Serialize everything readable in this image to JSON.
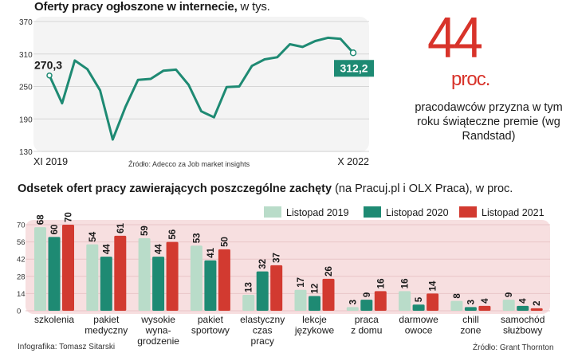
{
  "headline": {
    "title_bold": "Oferty pracy ogłoszone w internecie,",
    "title_unit": " w tys."
  },
  "callout": {
    "big_number": "44",
    "unit": "proc.",
    "caption": "pracodawców przyzna w tym roku świąteczne premie (wg Randstad)"
  },
  "chart_data": [
    {
      "type": "line",
      "title": "Oferty pracy ogłoszone w internecie, w tys.",
      "x_start_label": "XI 2019",
      "x_end_label": "X 2022",
      "yticks": [
        "370",
        "310",
        "250",
        "190",
        "130"
      ],
      "ylim": [
        130,
        370
      ],
      "values": [
        270.3,
        219,
        298,
        282,
        243,
        152,
        212,
        262,
        264,
        279,
        281,
        253,
        204,
        193,
        249,
        250,
        288,
        300,
        304,
        328,
        323,
        334,
        340,
        338,
        312.2
      ],
      "start_label": "270,3",
      "end_label": "312,2",
      "source": "Źródło: Adecco za Job market insights"
    },
    {
      "type": "bar",
      "title_bold": "Odsetek ofert pracy zawierających poszczególne zachęty",
      "title_rest": " (na Pracuj.pl i OLX Praca), w proc.",
      "categories": [
        "szkolenia",
        "pakiet medyczny",
        "wysokie wyna-grodzenie",
        "pakiet sportowy",
        "elastyczny czas pracy",
        "lekcje językowe",
        "praca z domu",
        "darmowe owoce",
        "chill zone",
        "samochód służbowy"
      ],
      "category_lines": [
        [
          "szkolenia"
        ],
        [
          "pakiet",
          "medyczny"
        ],
        [
          "wysokie",
          "wyna-",
          "grodzenie"
        ],
        [
          "pakiet",
          "sportowy"
        ],
        [
          "elastyczny",
          "czas",
          "pracy"
        ],
        [
          "lekcje",
          "językowe"
        ],
        [
          "praca",
          "z domu"
        ],
        [
          "darmowe",
          "owoce"
        ],
        [
          "chill",
          "zone"
        ],
        [
          "samochód",
          "służbowy"
        ]
      ],
      "series": [
        {
          "name": "Listopad 2019",
          "color": "#b9dcc9",
          "values": [
            68,
            54,
            59,
            53,
            13,
            17,
            3,
            16,
            8,
            9
          ]
        },
        {
          "name": "Listopad 2020",
          "color": "#1e8a73",
          "values": [
            60,
            44,
            44,
            41,
            32,
            12,
            9,
            5,
            3,
            4
          ]
        },
        {
          "name": "Listopad 2021",
          "color": "#d23a30",
          "values": [
            70,
            61,
            56,
            50,
            37,
            26,
            16,
            14,
            4,
            2
          ]
        }
      ],
      "yticks": [
        "70",
        "56",
        "42",
        "28",
        "14",
        "0"
      ],
      "ylim": [
        0,
        70
      ]
    }
  ],
  "credits": {
    "infographic": "Infografika: Tomasz Sitarski",
    "source": "Źródło: Grant Thornton"
  }
}
